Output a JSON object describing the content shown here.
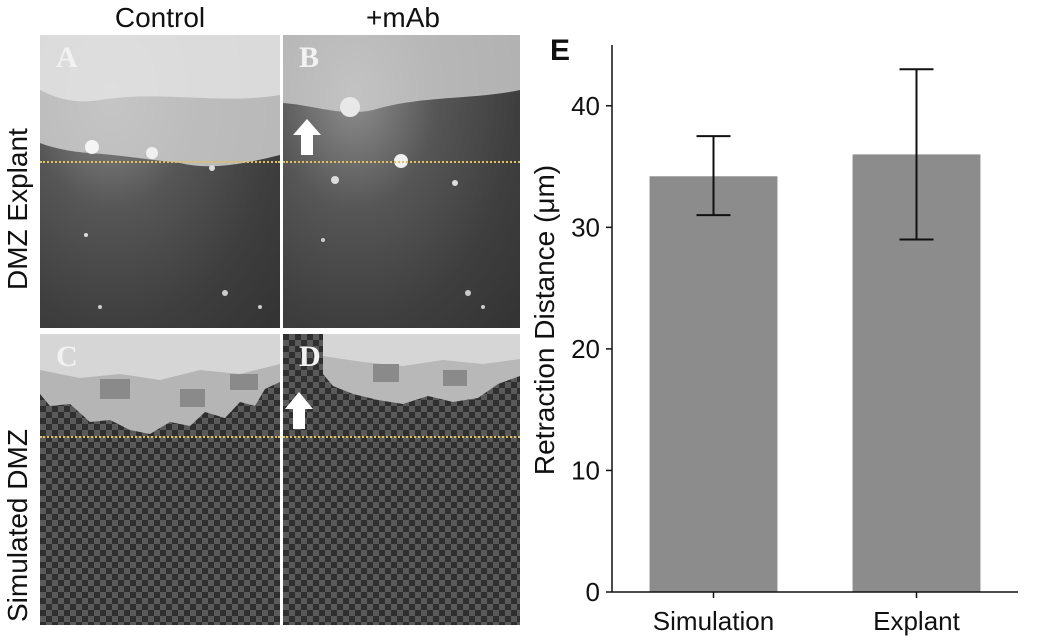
{
  "figure": {
    "col_headers": [
      "Control",
      "+mAb"
    ],
    "row_headers": [
      "DMZ Explant",
      "Simulated DMZ"
    ],
    "panel_labels": [
      "A",
      "B",
      "C",
      "D"
    ],
    "chart_label": "E",
    "colors": {
      "bar": "#8c8c8c",
      "error": "#111111",
      "guide_line": "#e0c060"
    }
  },
  "chart_data": {
    "type": "bar",
    "categories": [
      "Simulation",
      "Explant"
    ],
    "values": [
      34.2,
      36.0
    ],
    "error": [
      [
        31.0,
        37.5
      ],
      [
        29.0,
        43.0
      ]
    ],
    "xlabel": "",
    "ylabel": "Retraction Distance (μm)",
    "ylim": [
      0,
      45
    ],
    "yticks": [
      0,
      10,
      20,
      30,
      40
    ],
    "grid": false
  }
}
